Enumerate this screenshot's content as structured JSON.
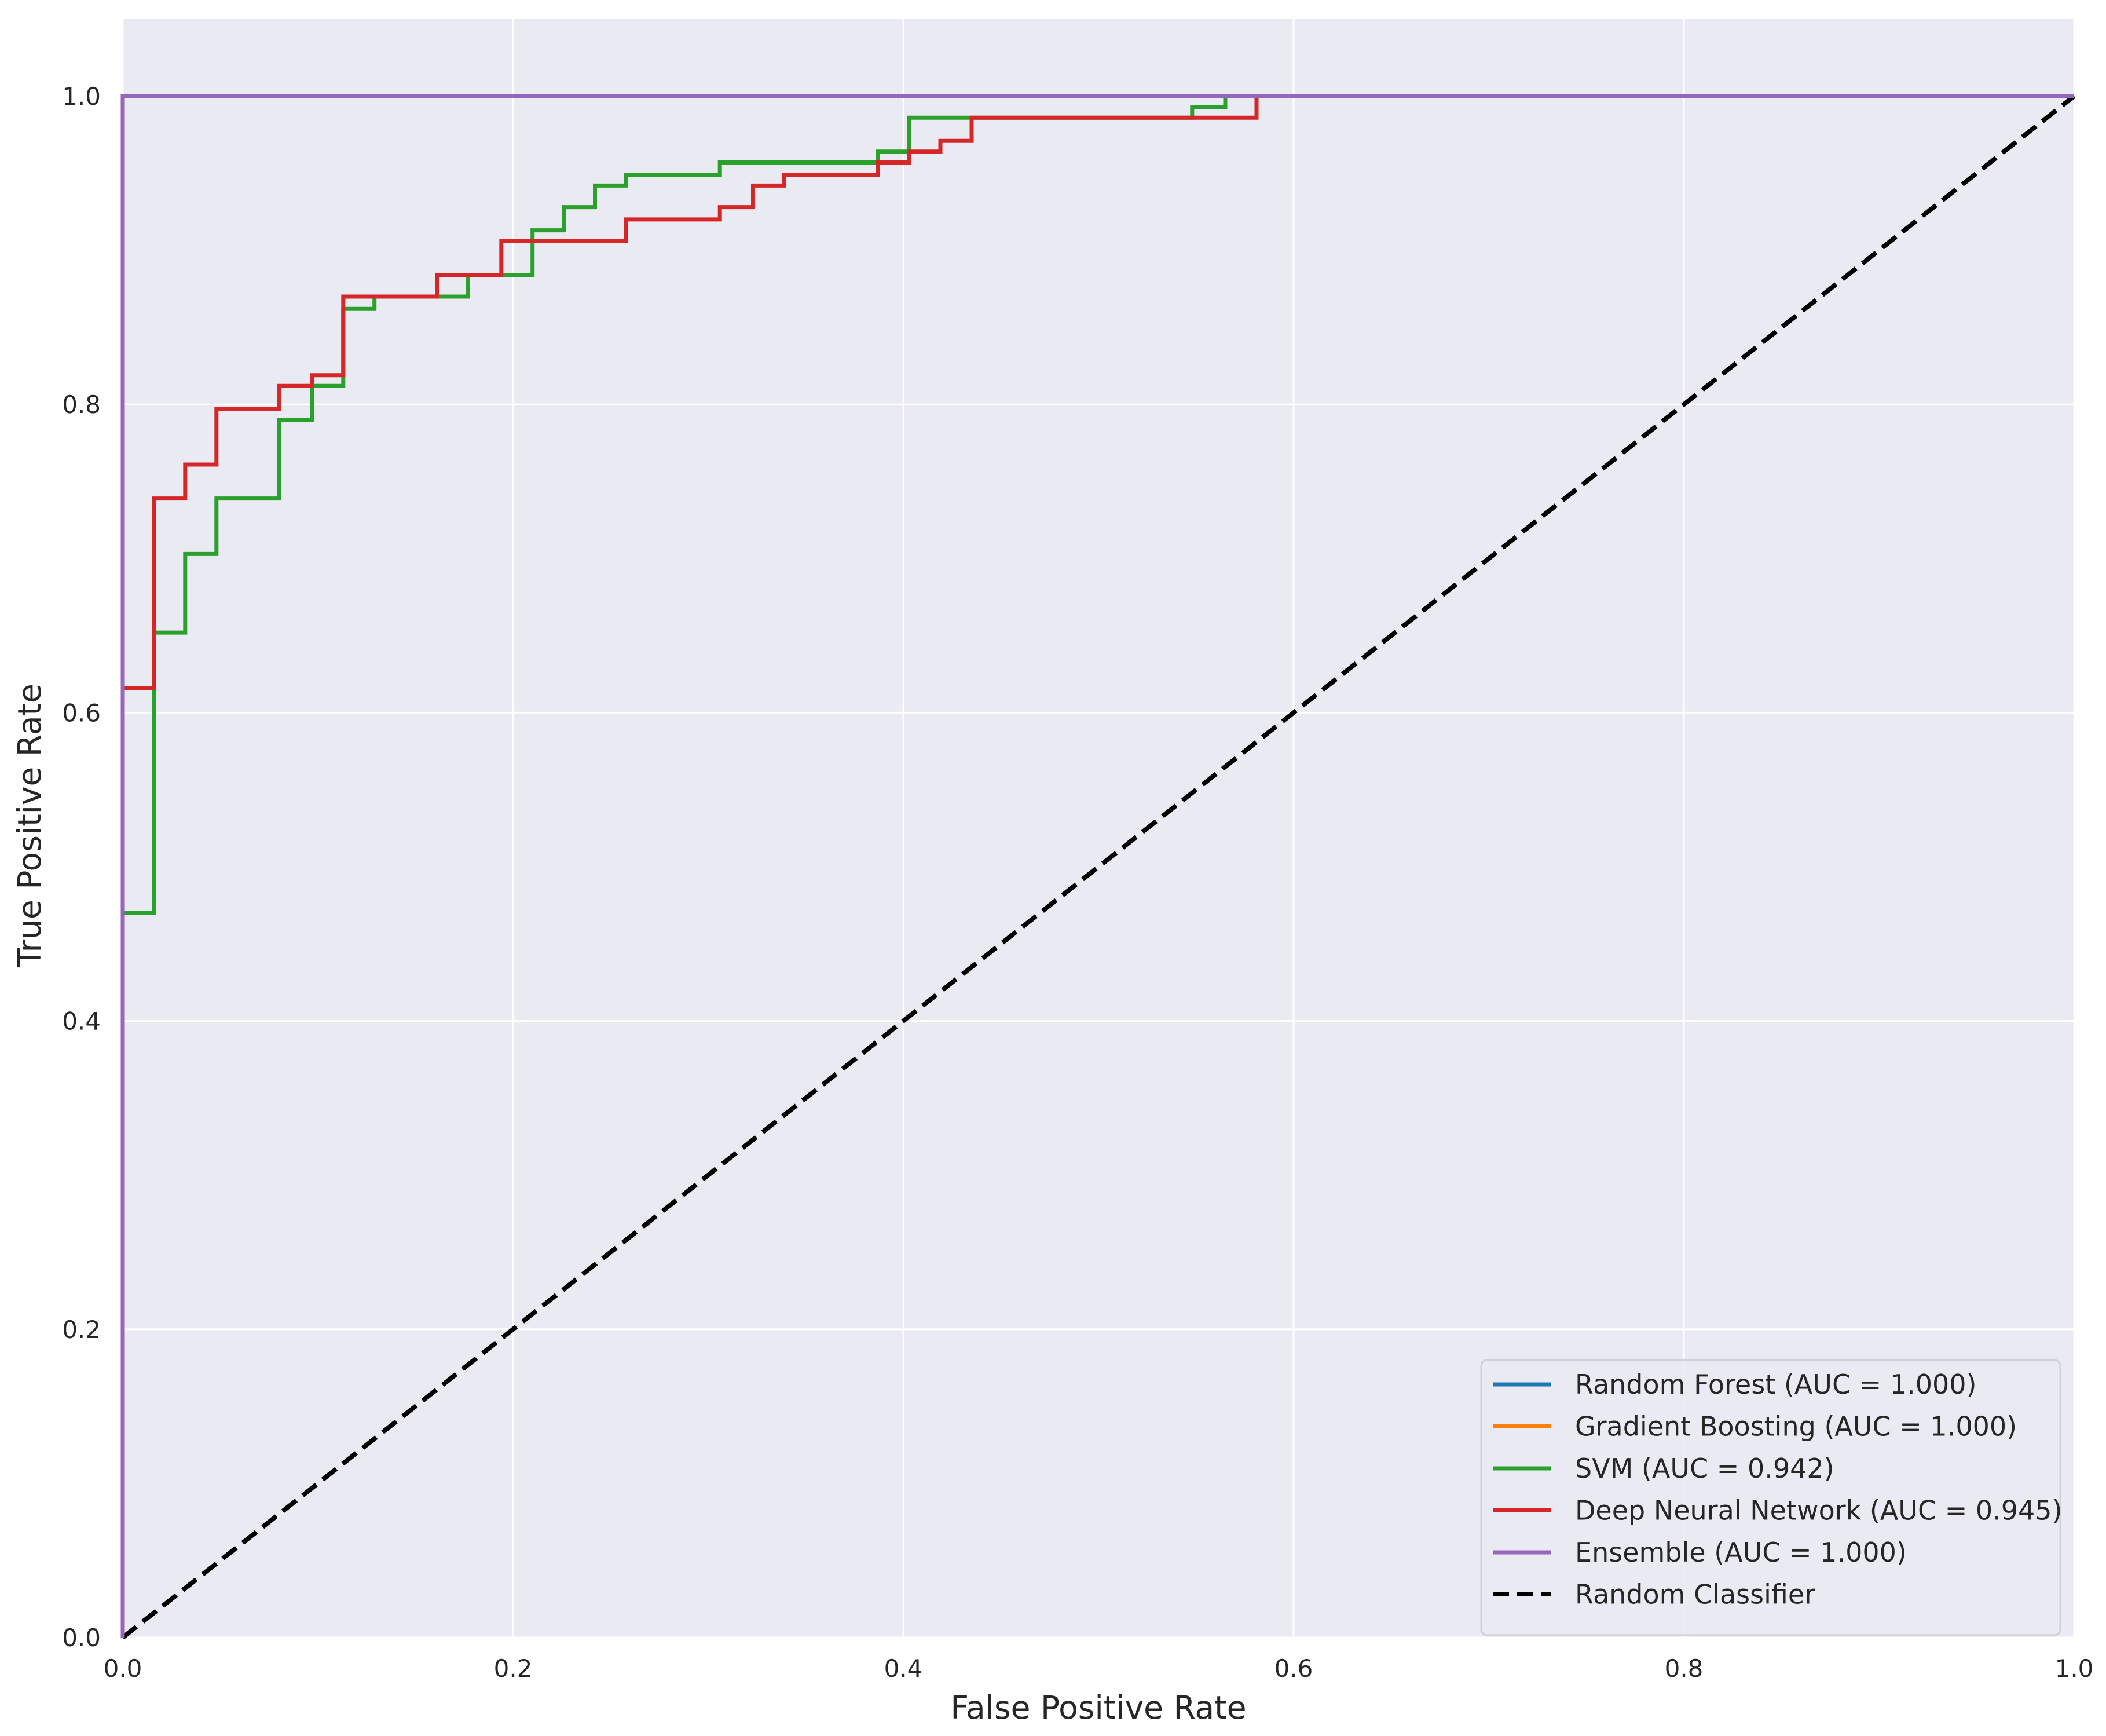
{
  "chart_data": {
    "type": "line",
    "title": "",
    "xlabel": "False Positive Rate",
    "ylabel": "True Positive Rate",
    "xlim": [
      0.0,
      1.0
    ],
    "ylim": [
      0.0,
      1.05
    ],
    "x_ticks": [
      "0.0",
      "0.2",
      "0.4",
      "0.6",
      "0.8",
      "1.0"
    ],
    "y_ticks": [
      "0.0",
      "0.2",
      "0.4",
      "0.6",
      "0.8",
      "1.0"
    ],
    "grid": true,
    "legend_position": "lower-right",
    "background_color": "#eaeaf2",
    "series": [
      {
        "name": "Random Forest (AUC = 1.000)",
        "color": "#1f77b4",
        "x": [
          0.0,
          0.0,
          1.0
        ],
        "y": [
          0.0,
          1.0,
          1.0
        ]
      },
      {
        "name": "Gradient Boosting (AUC = 1.000)",
        "color": "#ff7f0e",
        "x": [
          0.0,
          0.0,
          1.0
        ],
        "y": [
          0.0,
          1.0,
          1.0
        ]
      },
      {
        "name": "SVM (AUC = 0.942)",
        "color": "#2ca02c",
        "x": [
          0.0,
          0.0,
          0.016,
          0.016,
          0.032,
          0.032,
          0.048,
          0.048,
          0.08,
          0.08,
          0.097,
          0.097,
          0.113,
          0.113,
          0.129,
          0.129,
          0.177,
          0.177,
          0.21,
          0.21,
          0.226,
          0.226,
          0.242,
          0.242,
          0.258,
          0.258,
          0.306,
          0.306,
          0.387,
          0.387,
          0.403,
          0.403,
          0.548,
          0.548,
          0.565,
          0.565,
          1.0
        ],
        "y": [
          0.0,
          0.47,
          0.47,
          0.652,
          0.652,
          0.703,
          0.703,
          0.739,
          0.739,
          0.79,
          0.79,
          0.812,
          0.812,
          0.862,
          0.862,
          0.87,
          0.87,
          0.884,
          0.884,
          0.913,
          0.913,
          0.928,
          0.928,
          0.942,
          0.942,
          0.949,
          0.949,
          0.957,
          0.957,
          0.964,
          0.964,
          0.986,
          0.986,
          0.993,
          0.993,
          1.0,
          1.0
        ]
      },
      {
        "name": "Deep Neural Network (AUC = 0.945)",
        "color": "#d62728",
        "x": [
          0.0,
          0.0,
          0.016,
          0.016,
          0.032,
          0.032,
          0.048,
          0.048,
          0.08,
          0.08,
          0.097,
          0.097,
          0.113,
          0.113,
          0.161,
          0.161,
          0.194,
          0.194,
          0.258,
          0.258,
          0.306,
          0.306,
          0.323,
          0.323,
          0.339,
          0.339,
          0.387,
          0.387,
          0.403,
          0.403,
          0.419,
          0.419,
          0.435,
          0.435,
          0.581,
          0.581,
          1.0
        ],
        "y": [
          0.0,
          0.616,
          0.616,
          0.739,
          0.739,
          0.761,
          0.761,
          0.797,
          0.797,
          0.812,
          0.812,
          0.819,
          0.819,
          0.87,
          0.87,
          0.884,
          0.884,
          0.906,
          0.906,
          0.92,
          0.92,
          0.928,
          0.928,
          0.942,
          0.942,
          0.949,
          0.949,
          0.957,
          0.957,
          0.964,
          0.964,
          0.971,
          0.971,
          0.986,
          0.986,
          1.0,
          1.0
        ]
      },
      {
        "name": "Ensemble (AUC = 1.000)",
        "color": "#9467bd",
        "x": [
          0.0,
          0.0,
          1.0
        ],
        "y": [
          0.0,
          1.0,
          1.0
        ]
      },
      {
        "name": "Random Classifier",
        "color": "#000000",
        "dashed": true,
        "x": [
          0.0,
          1.0
        ],
        "y": [
          0.0,
          1.0
        ]
      }
    ]
  }
}
